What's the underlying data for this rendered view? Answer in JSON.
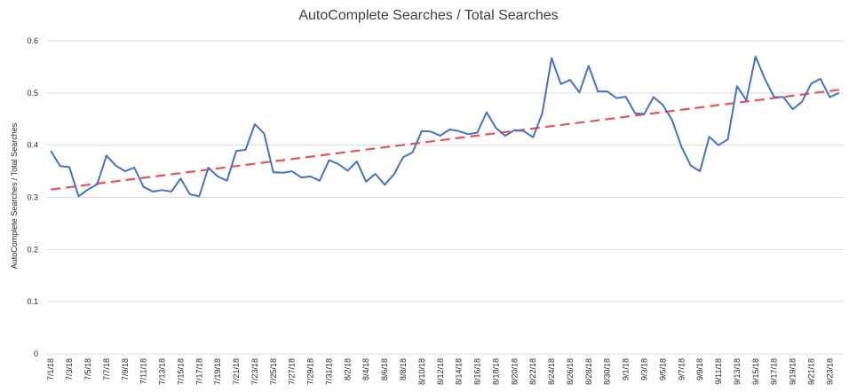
{
  "chart_data": {
    "type": "line",
    "title": "AutoComplete Searches / Total Searches",
    "xlabel": "",
    "ylabel": "AutoComplete Searches / Total Searches",
    "ylim": [
      0,
      0.6
    ],
    "y_ticks": [
      "0",
      "0.1",
      "0.2",
      "0.3",
      "0.4",
      "0.5",
      "0.6"
    ],
    "grid": true,
    "legend": "none",
    "x_dates": [
      "7/1/18",
      "7/2/18",
      "7/3/18",
      "7/4/18",
      "7/5/18",
      "7/6/18",
      "7/7/18",
      "7/8/18",
      "7/9/18",
      "7/10/18",
      "7/11/18",
      "7/12/18",
      "7/13/18",
      "7/14/18",
      "7/15/18",
      "7/16/18",
      "7/17/18",
      "7/18/18",
      "7/19/18",
      "7/20/18",
      "7/21/18",
      "7/22/18",
      "7/23/18",
      "7/24/18",
      "7/25/18",
      "7/26/18",
      "7/27/18",
      "7/28/18",
      "7/29/18",
      "7/30/18",
      "7/31/18",
      "8/1/18",
      "8/2/18",
      "8/3/18",
      "8/4/18",
      "8/5/18",
      "8/6/18",
      "8/7/18",
      "8/8/18",
      "8/9/18",
      "8/10/18",
      "8/11/18",
      "8/12/18",
      "8/13/18",
      "8/14/18",
      "8/15/18",
      "8/16/18",
      "8/17/18",
      "8/18/18",
      "8/19/18",
      "8/20/18",
      "8/21/18",
      "8/22/18",
      "8/23/18",
      "8/24/18",
      "8/25/18",
      "8/26/18",
      "8/27/18",
      "8/28/18",
      "8/29/18",
      "8/30/18",
      "8/31/18",
      "9/1/18",
      "9/2/18",
      "9/3/18",
      "9/4/18",
      "9/5/18",
      "9/6/18",
      "9/7/18",
      "9/8/18",
      "9/9/18",
      "9/10/18",
      "9/11/18",
      "9/12/18",
      "9/13/18",
      "9/14/18",
      "9/15/18",
      "9/16/18",
      "9/17/18",
      "9/18/18",
      "9/19/18",
      "9/20/18",
      "9/21/18",
      "9/22/18",
      "9/23/18",
      "9/24/18"
    ],
    "x_tick_labels": [
      "7/1/18",
      "7/3/18",
      "7/5/18",
      "7/7/18",
      "7/9/18",
      "7/11/18",
      "7/13/18",
      "7/15/18",
      "7/17/18",
      "7/19/18",
      "7/21/18",
      "7/23/18",
      "7/25/18",
      "7/27/18",
      "7/29/18",
      "7/31/18",
      "8/2/18",
      "8/4/18",
      "8/6/18",
      "8/8/18",
      "8/10/18",
      "8/12/18",
      "8/14/18",
      "8/16/18",
      "8/18/18",
      "8/20/18",
      "8/22/18",
      "8/24/18",
      "8/26/18",
      "8/28/18",
      "8/30/18",
      "9/1/18",
      "9/3/18",
      "9/5/18",
      "9/7/18",
      "9/9/18",
      "9/11/18",
      "9/13/18",
      "9/15/18",
      "9/17/18",
      "9/19/18",
      "9/21/18",
      "9/23/18"
    ],
    "series": [
      {
        "color": "#4472C4",
        "values": [
          0.389,
          0.36,
          0.358,
          0.302,
          0.315,
          0.325,
          0.38,
          0.361,
          0.35,
          0.357,
          0.32,
          0.311,
          0.314,
          0.311,
          0.336,
          0.306,
          0.302,
          0.357,
          0.34,
          0.332,
          0.389,
          0.391,
          0.44,
          0.422,
          0.348,
          0.347,
          0.35,
          0.338,
          0.34,
          0.332,
          0.371,
          0.364,
          0.351,
          0.369,
          0.33,
          0.345,
          0.324,
          0.344,
          0.377,
          0.386,
          0.427,
          0.426,
          0.418,
          0.43,
          0.427,
          0.421,
          0.424,
          0.463,
          0.433,
          0.418,
          0.429,
          0.427,
          0.415,
          0.461,
          0.567,
          0.517,
          0.525,
          0.501,
          0.552,
          0.503,
          0.503,
          0.49,
          0.493,
          0.461,
          0.46,
          0.492,
          0.477,
          0.448,
          0.397,
          0.361,
          0.35,
          0.416,
          0.4,
          0.411,
          0.513,
          0.486,
          0.57,
          0.527,
          0.492,
          0.492,
          0.469,
          0.483,
          0.518,
          0.527,
          0.492,
          0.5
        ]
      },
      {
        "type": "trendline",
        "color": "#E8525A",
        "style": "dashed",
        "start": 0.315,
        "end": 0.506
      }
    ]
  }
}
